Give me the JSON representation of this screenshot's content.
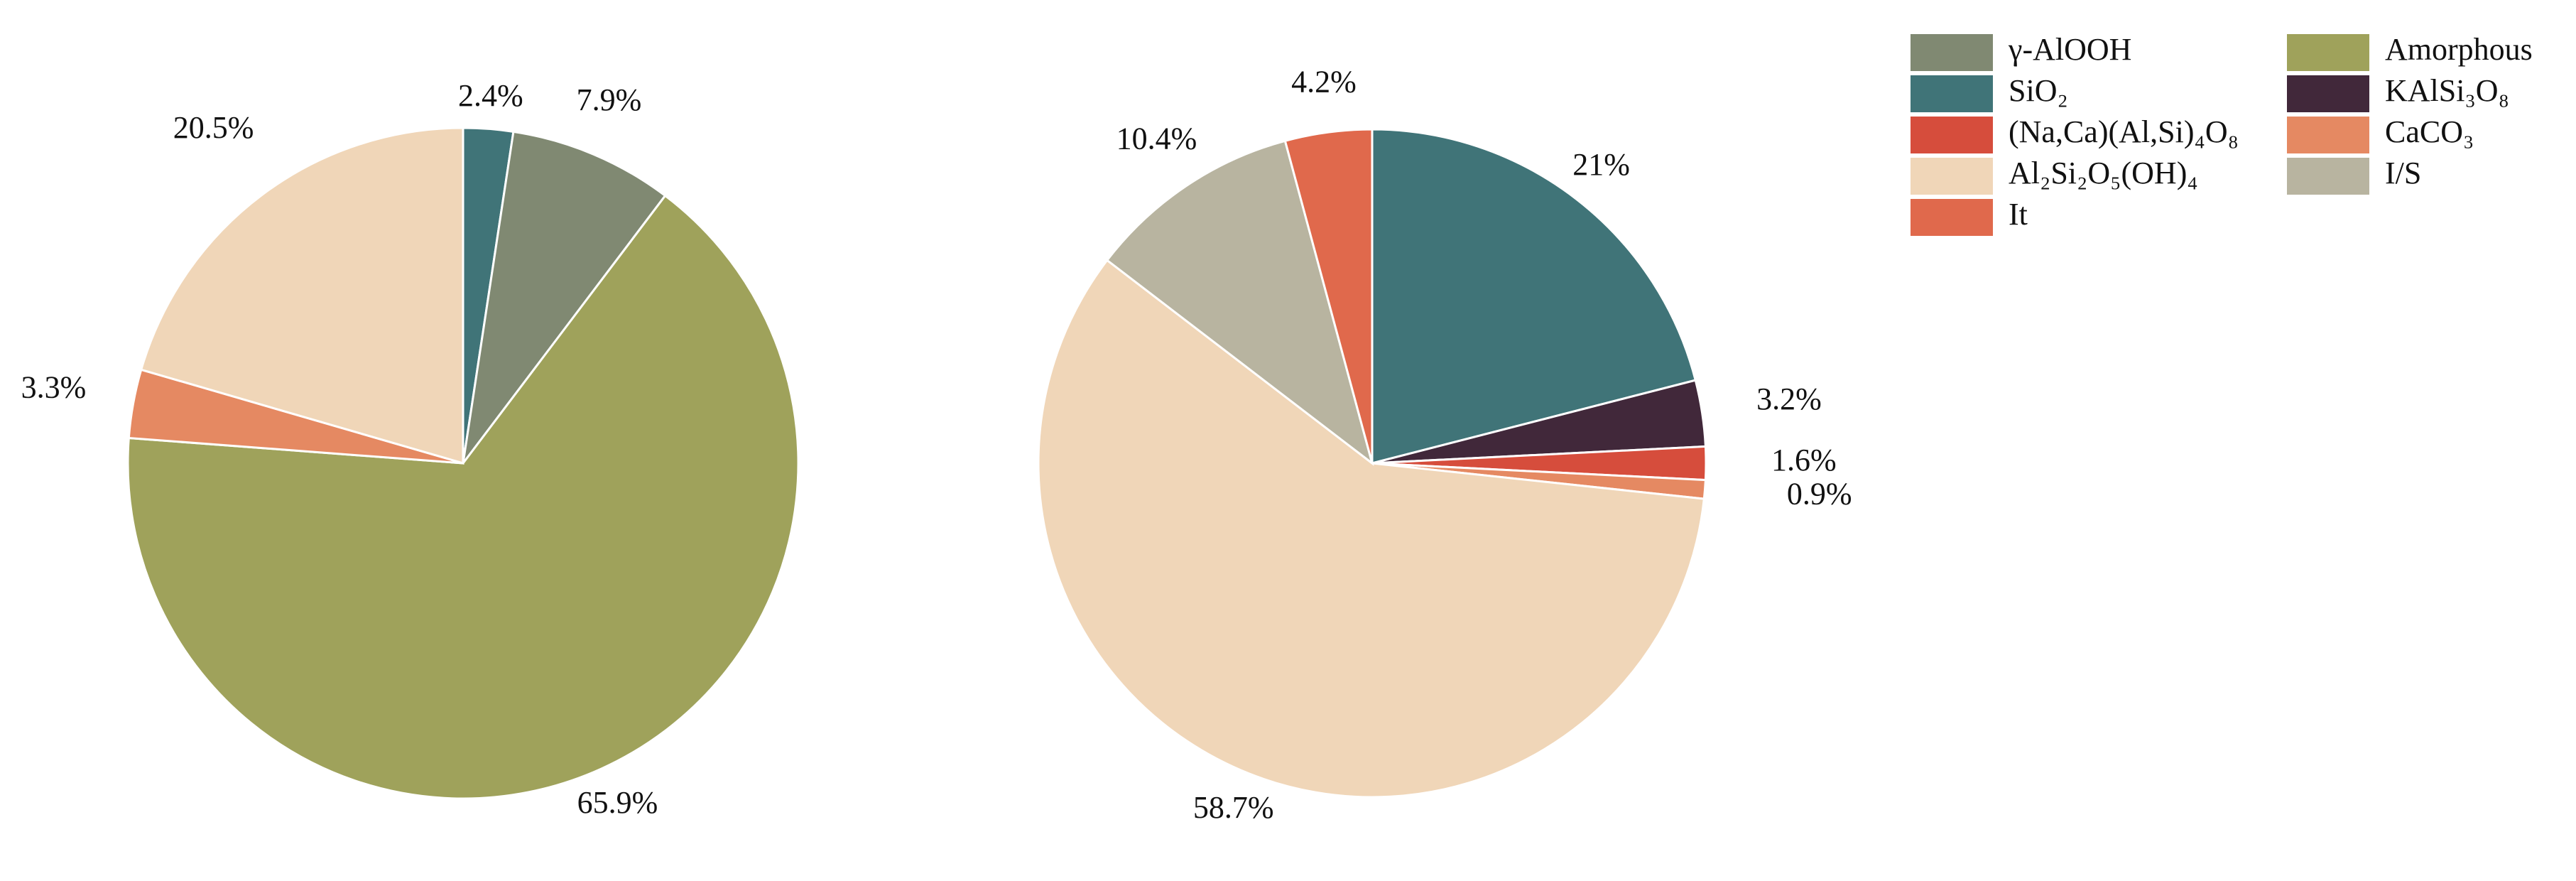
{
  "chart_data": [
    {
      "type": "pie",
      "slices": [
        {
          "name": "SiO₂",
          "value": 2.4,
          "label": "2.4%"
        },
        {
          "name": "γ-AlOOH",
          "value": 7.9,
          "label": "7.9%"
        },
        {
          "name": "Amorphous",
          "value": 65.9,
          "label": "65.9%"
        },
        {
          "name": "CaCO₃",
          "value": 3.3,
          "label": "3.3%"
        },
        {
          "name": "Al₂Si₂O₅(OH)₄",
          "value": 20.5,
          "label": "20.5%"
        }
      ]
    },
    {
      "type": "pie",
      "slices": [
        {
          "name": "SiO₂",
          "value": 21,
          "label": "21%"
        },
        {
          "name": "KAlSi₃O₈",
          "value": 3.2,
          "label": "3.2%"
        },
        {
          "name": "(Na,Ca)(Al,Si)₄O₈",
          "value": 1.6,
          "label": "1.6%"
        },
        {
          "name": "CaCO₃",
          "value": 0.9,
          "label": "0.9%"
        },
        {
          "name": "Al₂Si₂O₅(OH)₄",
          "value": 58.7,
          "label": "58.7%"
        },
        {
          "name": "I/S",
          "value": 10.4,
          "label": "10.4%"
        },
        {
          "name": "It",
          "value": 4.2,
          "label": "4.2%"
        }
      ]
    }
  ],
  "legend": {
    "position": "top-right",
    "items": [
      {
        "label": "γ-AlOOH",
        "color": "#808972"
      },
      {
        "label": "Amorphous",
        "color": "#9fa25b"
      },
      {
        "label": "SiO₂",
        "color": "#407478"
      },
      {
        "label": "KAlSi₃O₈",
        "color": "#41283a"
      },
      {
        "label": "(Na,Ca)(Al,Si)₄O₈",
        "color": "#d64d3c"
      },
      {
        "label": "CaCO₃",
        "color": "#e58962"
      },
      {
        "label": "Al₂Si₂O₅(OH)₄",
        "color": "#f0d6b8"
      },
      {
        "label": "I/S",
        "color": "#b8b4a0"
      },
      {
        "label": "It",
        "color": "#e0694c"
      }
    ]
  }
}
